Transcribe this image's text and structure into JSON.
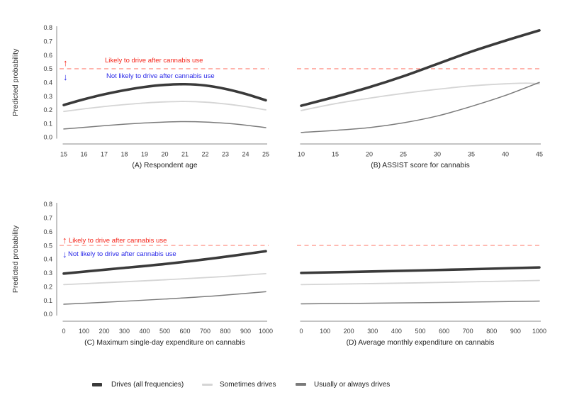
{
  "figure": {
    "ylabel": "Predicted probability",
    "background": "#ffffff"
  },
  "annotations": {
    "likely": {
      "arrow": "↑",
      "text": "Likely to drive after cannabis use",
      "color": "#f5261b"
    },
    "not_likely": {
      "arrow": "↓",
      "text": "Not likely to drive after cannabis use",
      "color": "#2a29e8"
    }
  },
  "reference_line": {
    "value": 0.5,
    "color": "#ff988d",
    "style": "dashed"
  },
  "legend": {
    "items": [
      {
        "label": "Drives (all frequencies)",
        "color": "#3a3a3a"
      },
      {
        "label": "Sometimes drives",
        "color": "#d5d5d5"
      },
      {
        "label": "Usually or always drives",
        "color": "#7b7b7b"
      }
    ]
  },
  "chart_data": [
    {
      "id": "A",
      "type": "line",
      "title": "(A) Respondent age",
      "xlabel": "(A) Respondent age",
      "ylabel": "Predicted probability",
      "xlim": [
        15,
        25
      ],
      "ylim": [
        0,
        0.8
      ],
      "xticks": [
        15,
        16,
        17,
        18,
        19,
        20,
        21,
        22,
        23,
        24,
        25
      ],
      "yticks": [
        "0.0",
        "0.1",
        "0.2",
        "0.3",
        "0.4",
        "0.5",
        "0.6",
        "0.7",
        "0.8"
      ],
      "grid": false,
      "ref_line": 0.5,
      "show_annotations": true,
      "series": [
        {
          "name": "Drives (all frequencies)",
          "points": [
            [
              15,
              0.235
            ],
            [
              16,
              0.277
            ],
            [
              17,
              0.313
            ],
            [
              18,
              0.343
            ],
            [
              19,
              0.367
            ],
            [
              20,
              0.382
            ],
            [
              21,
              0.387
            ],
            [
              22,
              0.378
            ],
            [
              23,
              0.353
            ],
            [
              24,
              0.316
            ],
            [
              25,
              0.27
            ]
          ]
        },
        {
          "name": "Sometimes drives",
          "points": [
            [
              15,
              0.188
            ],
            [
              16,
              0.207
            ],
            [
              17,
              0.224
            ],
            [
              18,
              0.238
            ],
            [
              19,
              0.25
            ],
            [
              20,
              0.258
            ],
            [
              21,
              0.261
            ],
            [
              22,
              0.256
            ],
            [
              23,
              0.243
            ],
            [
              24,
              0.224
            ],
            [
              25,
              0.2
            ]
          ]
        },
        {
          "name": "Usually or always drives",
          "points": [
            [
              15,
              0.06
            ],
            [
              16,
              0.072
            ],
            [
              17,
              0.084
            ],
            [
              18,
              0.095
            ],
            [
              19,
              0.104
            ],
            [
              20,
              0.111
            ],
            [
              21,
              0.114
            ],
            [
              22,
              0.111
            ],
            [
              23,
              0.102
            ],
            [
              24,
              0.088
            ],
            [
              25,
              0.07
            ]
          ]
        }
      ]
    },
    {
      "id": "B",
      "type": "line",
      "title": "(B) ASSIST score for cannabis",
      "xlabel": "(B) ASSIST score for cannabis",
      "ylabel": "",
      "xlim": [
        10,
        45
      ],
      "ylim": [
        0,
        0.8
      ],
      "xticks": [
        10,
        15,
        20,
        25,
        30,
        35,
        40,
        45
      ],
      "yticks": null,
      "grid": false,
      "ref_line": 0.5,
      "show_annotations": false,
      "series": [
        {
          "name": "Drives (all frequencies)",
          "points": [
            [
              10,
              0.23
            ],
            [
              15,
              0.295
            ],
            [
              20,
              0.365
            ],
            [
              25,
              0.445
            ],
            [
              30,
              0.535
            ],
            [
              35,
              0.625
            ],
            [
              40,
              0.705
            ],
            [
              45,
              0.78
            ]
          ]
        },
        {
          "name": "Sometimes drives",
          "points": [
            [
              10,
              0.195
            ],
            [
              15,
              0.245
            ],
            [
              20,
              0.285
            ],
            [
              25,
              0.32
            ],
            [
              30,
              0.35
            ],
            [
              35,
              0.375
            ],
            [
              40,
              0.39
            ],
            [
              43,
              0.395
            ],
            [
              45,
              0.39
            ]
          ]
        },
        {
          "name": "Usually or always drives",
          "points": [
            [
              10,
              0.035
            ],
            [
              15,
              0.05
            ],
            [
              20,
              0.07
            ],
            [
              25,
              0.105
            ],
            [
              30,
              0.155
            ],
            [
              35,
              0.225
            ],
            [
              40,
              0.305
            ],
            [
              45,
              0.4
            ]
          ]
        }
      ]
    },
    {
      "id": "C",
      "type": "line",
      "title": "(C) Maximum single-day expenditure on cannabis",
      "xlabel": "(C) Maximum single-day expenditure on cannabis",
      "ylabel": "Predicted probability",
      "xlim": [
        0,
        1000
      ],
      "ylim": [
        0,
        0.8
      ],
      "xticks": [
        0,
        100,
        200,
        300,
        400,
        500,
        600,
        700,
        800,
        900,
        1000
      ],
      "yticks": [
        "0.0",
        "0.1",
        "0.2",
        "0.3",
        "0.4",
        "0.5",
        "0.6",
        "0.7",
        "0.8"
      ],
      "grid": false,
      "ref_line": 0.5,
      "show_annotations": true,
      "series": [
        {
          "name": "Drives (all frequencies)",
          "points": [
            [
              0,
              0.295
            ],
            [
              250,
              0.33
            ],
            [
              500,
              0.365
            ],
            [
              750,
              0.408
            ],
            [
              1000,
              0.458
            ]
          ]
        },
        {
          "name": "Sometimes drives",
          "points": [
            [
              0,
              0.215
            ],
            [
              250,
              0.232
            ],
            [
              500,
              0.25
            ],
            [
              750,
              0.27
            ],
            [
              1000,
              0.295
            ]
          ]
        },
        {
          "name": "Usually or always drives",
          "points": [
            [
              0,
              0.072
            ],
            [
              250,
              0.09
            ],
            [
              500,
              0.11
            ],
            [
              750,
              0.133
            ],
            [
              1000,
              0.163
            ]
          ]
        }
      ]
    },
    {
      "id": "D",
      "type": "line",
      "title": "(D) Average monthly expenditure on cannabis",
      "xlabel": "(D) Average monthly expenditure on cannabis",
      "ylabel": "",
      "xlim": [
        0,
        1000
      ],
      "ylim": [
        0,
        0.8
      ],
      "xticks": [
        0,
        100,
        200,
        300,
        400,
        500,
        600,
        700,
        800,
        900,
        1000
      ],
      "yticks": null,
      "grid": false,
      "ref_line": 0.5,
      "show_annotations": false,
      "series": [
        {
          "name": "Drives (all frequencies)",
          "points": [
            [
              0,
              0.3
            ],
            [
              500,
              0.318
            ],
            [
              1000,
              0.34
            ]
          ]
        },
        {
          "name": "Sometimes drives",
          "points": [
            [
              0,
              0.215
            ],
            [
              500,
              0.228
            ],
            [
              1000,
              0.245
            ]
          ]
        },
        {
          "name": "Usually or always drives",
          "points": [
            [
              0,
              0.075
            ],
            [
              500,
              0.083
            ],
            [
              1000,
              0.095
            ]
          ]
        }
      ]
    }
  ]
}
